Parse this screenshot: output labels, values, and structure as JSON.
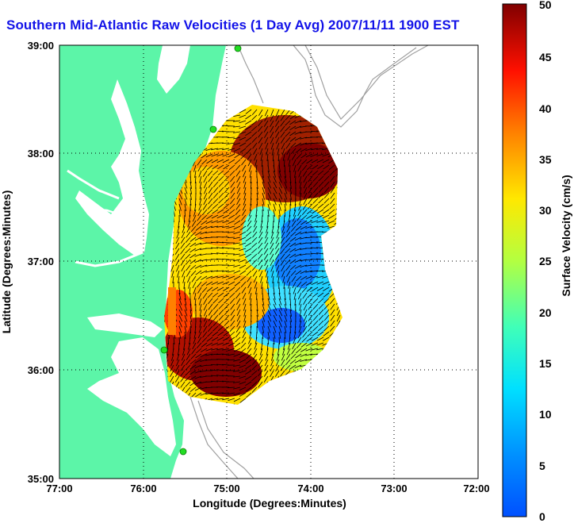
{
  "title": "Southern Mid-Atlantic Raw Velocities (1 Day Avg) 2007/11/11 1900 EST",
  "xlabel": "Longitude (Degrees:Minutes)",
  "ylabel": "Latitude (Degrees:Minutes)",
  "x_ticks": [
    "77:00",
    "76:00",
    "75:00",
    "74:00",
    "73:00",
    "72:00"
  ],
  "y_ticks": [
    "39:00",
    "38:00",
    "37:00",
    "36:00",
    "35:00"
  ],
  "colorbar": {
    "label": "Surface Velocity (cm/s)",
    "ticks": [
      "0",
      "5",
      "10",
      "15",
      "20",
      "25",
      "30",
      "35",
      "40",
      "45",
      "50"
    ],
    "range": [
      0,
      50
    ],
    "colormap": "jet"
  },
  "map": {
    "lon_range": [
      -77,
      -72
    ],
    "lat_range": [
      35,
      39
    ],
    "land_color": "#5cf5a8",
    "water_color": "#ffffff",
    "grid": "dotted",
    "features": [
      "coastline",
      "chesapeake-bay",
      "delmarva-peninsula",
      "outer-banks",
      "bathymetry-contours",
      "hf-radar-sites"
    ],
    "radar_site_color": "#22dd22"
  }
}
